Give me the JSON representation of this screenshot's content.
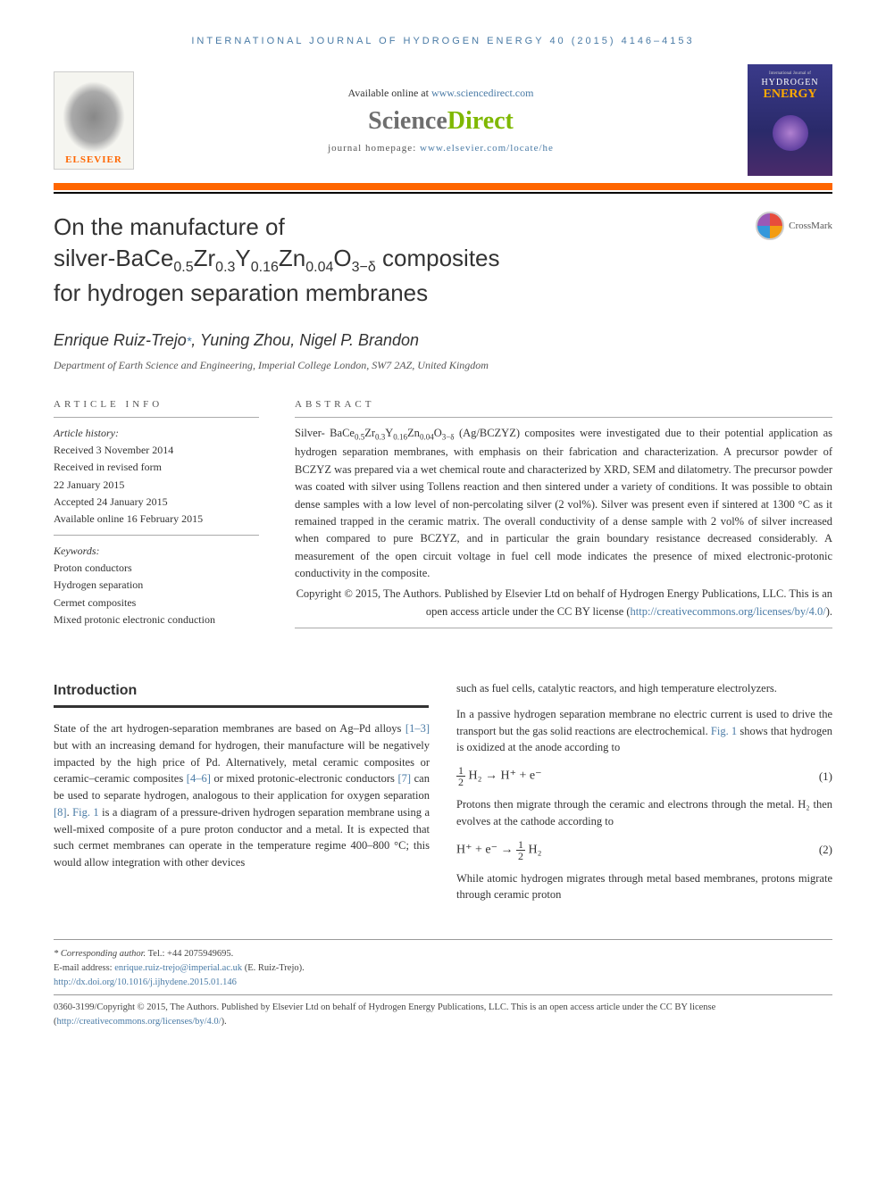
{
  "header": {
    "journal_line": "INTERNATIONAL JOURNAL OF HYDROGEN ENERGY 40 (2015) 4146–4153",
    "available_text": "Available online at ",
    "sd_url": "www.sciencedirect.com",
    "sd_science": "Science",
    "sd_direct": "Direct",
    "homepage_label": "journal homepage: ",
    "homepage_url": "www.elsevier.com/locate/he",
    "elsevier_label": "ELSEVIER",
    "cover": {
      "top": "International Journal of",
      "hydrogen": "HYDROGEN",
      "energy": "ENERGY"
    }
  },
  "title": {
    "line1": "On the manufacture of",
    "line2_pre": "silver-BaCe",
    "line2_s1": "0.5",
    "line2_zr": "Zr",
    "line2_s2": "0.3",
    "line2_y": "Y",
    "line2_s3": "0.16",
    "line2_zn": "Zn",
    "line2_s4": "0.04",
    "line2_o": "O",
    "line2_s5": "3−δ",
    "line2_post": " composites",
    "line3": "for hydrogen separation membranes"
  },
  "crossmark_label": "CrossMark",
  "authors": {
    "a1": "Enrique Ruiz-Trejo",
    "a1_mark": "*",
    "a2": ", Yuning Zhou, Nigel P. Brandon"
  },
  "affiliation": "Department of Earth Science and Engineering, Imperial College London, SW7 2AZ, United Kingdom",
  "article_info": {
    "heading": "ARTICLE INFO",
    "history_label": "Article history:",
    "received": "Received 3 November 2014",
    "revised1": "Received in revised form",
    "revised2": "22 January 2015",
    "accepted": "Accepted 24 January 2015",
    "online": "Available online 16 February 2015",
    "keywords_label": "Keywords:",
    "kw1": "Proton conductors",
    "kw2": "Hydrogen separation",
    "kw3": "Cermet composites",
    "kw4": "Mixed protonic electronic conduction"
  },
  "abstract": {
    "heading": "ABSTRACT",
    "text_pre": "Silver- BaCe",
    "s1": "0.5",
    "zr": "Zr",
    "s2": "0.3",
    "y": "Y",
    "s3": "0.16",
    "zn": "Zn",
    "s4": "0.04",
    "o": "O",
    "s5": "3−δ",
    "text_post": " (Ag/BCZYZ) composites were investigated due to their potential application as hydrogen separation membranes, with emphasis on their fabrication and characterization. A precursor powder of BCZYZ was prepared via a wet chemical route and characterized by XRD, SEM and dilatometry. The precursor powder was coated with silver using Tollens reaction and then sintered under a variety of conditions. It was possible to obtain dense samples with a low level of non-percolating silver (2 vol%). Silver was present even if sintered at 1300 °C as it remained trapped in the ceramic matrix. The overall conductivity of a dense sample with 2 vol% of silver increased when compared to pure BCZYZ, and in particular the grain boundary resistance decreased considerably. A measurement of the open circuit voltage in fuel cell mode indicates the presence of mixed electronic-protonic conductivity in the composite.",
    "copyright": "Copyright © 2015, The Authors. Published by Elsevier Ltd on behalf of Hydrogen Energy Publications, LLC. This is an open access article under the CC BY license (",
    "cc_url": "http://creativecommons.org/licenses/by/4.0/",
    "copyright_close": ")."
  },
  "body": {
    "intro_heading": "Introduction",
    "col1_p1_pre": "State of the art hydrogen-separation membranes are based on Ag–Pd alloys ",
    "col1_ref1": "[1–3]",
    "col1_p1_mid1": " but with an increasing demand for hydrogen, their manufacture will be negatively impacted by the high price of Pd. Alternatively, metal ceramic composites or ceramic–ceramic composites ",
    "col1_ref2": "[4–6]",
    "col1_p1_mid2": " or mixed protonic-electronic conductors ",
    "col1_ref3": "[7]",
    "col1_p1_mid3": " can be used to separate hydrogen, analogous to their application for oxygen separation ",
    "col1_ref4": "[8]",
    "col1_p1_mid4": ". ",
    "col1_fig1": "Fig. 1",
    "col1_p1_post": " is a diagram of a pressure-driven hydrogen separation membrane using a well-mixed composite of a pure proton conductor and a metal. It is expected that such cermet membranes can operate in the temperature regime 400–800 °C; this would allow integration with other devices",
    "col2_p1": "such as fuel cells, catalytic reactors, and high temperature electrolyzers.",
    "col2_p2_pre": "In a passive hydrogen separation membrane no electric current is used to drive the transport but the gas solid reactions are electrochemical. ",
    "col2_fig1": "Fig. 1",
    "col2_p2_post": " shows that hydrogen is oxidized at the anode according to",
    "eq1_num": "(1)",
    "col2_p3": "Protons then migrate through the ceramic and electrons through the metal. H₂ then evolves at the cathode according to",
    "eq2_num": "(2)",
    "col2_p4": "While atomic hydrogen migrates through metal based membranes, protons migrate through ceramic proton"
  },
  "equations": {
    "eq1": {
      "frac_num": "1",
      "frac_den": "2",
      "body": "H₂ → H⁺ + e⁻"
    },
    "eq2": {
      "pre": "H⁺ + e⁻ → ",
      "frac_num": "1",
      "frac_den": "2",
      "post": "H₂"
    }
  },
  "footer": {
    "corr_label": "* Corresponding author.",
    "tel": " Tel.: +44 2075949695.",
    "email_label": "E-mail address: ",
    "email": "enrique.ruiz-trejo@imperial.ac.uk",
    "email_post": " (E. Ruiz-Trejo).",
    "doi": "http://dx.doi.org/10.1016/j.ijhydene.2015.01.146",
    "issn_line": "0360-3199/Copyright © 2015, The Authors. Published by Elsevier Ltd on behalf of Hydrogen Energy Publications, LLC. This is an open access article under the CC BY license (",
    "cc_url": "http://creativecommons.org/licenses/by/4.0/",
    "issn_close": ")."
  },
  "colors": {
    "link": "#4a7ba6",
    "orange": "#ff6600",
    "green": "#7fb800"
  }
}
